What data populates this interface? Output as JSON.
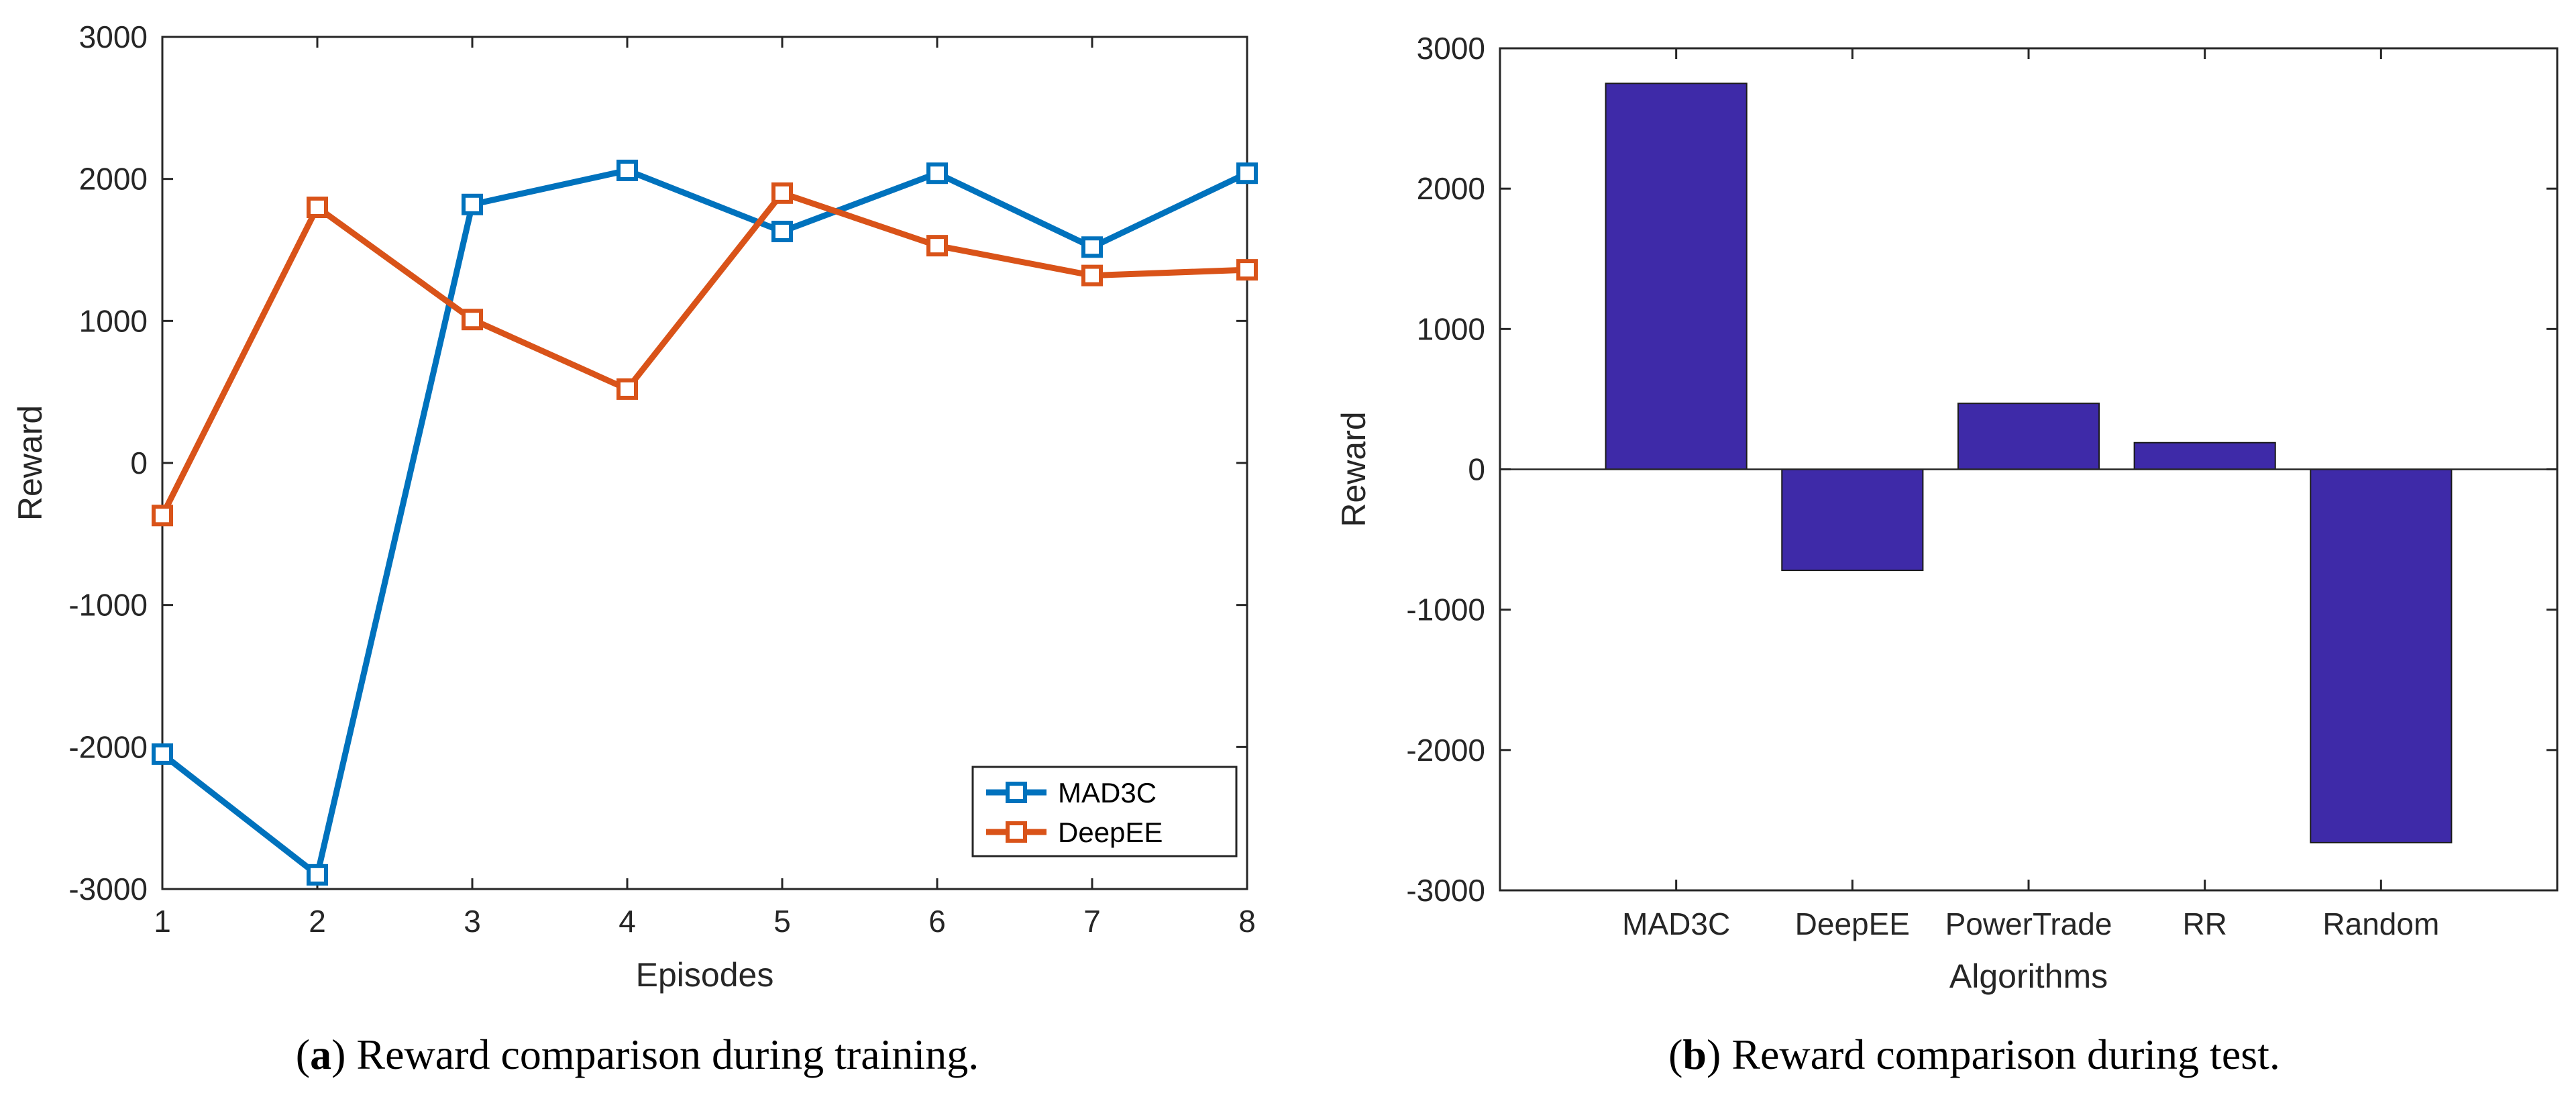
{
  "figure": {
    "subfigures": [
      {
        "letter": "a",
        "caption": "Reward comparison during training."
      },
      {
        "letter": "b",
        "caption": "Reward comparison during test."
      }
    ]
  },
  "chart_data": [
    {
      "type": "line",
      "title": "",
      "xlabel": "Episodes",
      "ylabel": "Reward",
      "x": [
        1,
        2,
        3,
        4,
        5,
        6,
        7,
        8
      ],
      "xlim": [
        1,
        8
      ],
      "ylim": [
        -3000,
        3000
      ],
      "xticks": [
        1,
        2,
        3,
        4,
        5,
        6,
        7,
        8
      ],
      "yticks": [
        -3000,
        -2000,
        -1000,
        0,
        1000,
        2000,
        3000
      ],
      "grid": false,
      "legend_position": "bottom-right",
      "series": [
        {
          "name": "MAD3C",
          "color": "#0072BD",
          "marker": "square",
          "values": [
            -2050,
            -2900,
            1820,
            2060,
            1630,
            2040,
            1520,
            2040
          ]
        },
        {
          "name": "DeepEE",
          "color": "#D95319",
          "marker": "square",
          "values": [
            -370,
            1800,
            1010,
            520,
            1900,
            1530,
            1320,
            1360
          ]
        }
      ]
    },
    {
      "type": "bar",
      "title": "",
      "xlabel": "Algorithms",
      "ylabel": "Reward",
      "categories": [
        "MAD3C",
        "DeepEE",
        "PowerTrade",
        "RR",
        "Random"
      ],
      "values": [
        2750,
        -720,
        470,
        190,
        -2660
      ],
      "ylim": [
        -3000,
        3000
      ],
      "yticks": [
        -3000,
        -2000,
        -1000,
        0,
        1000,
        2000,
        3000
      ],
      "grid": false,
      "bar_color": "#3E2AA8"
    }
  ]
}
